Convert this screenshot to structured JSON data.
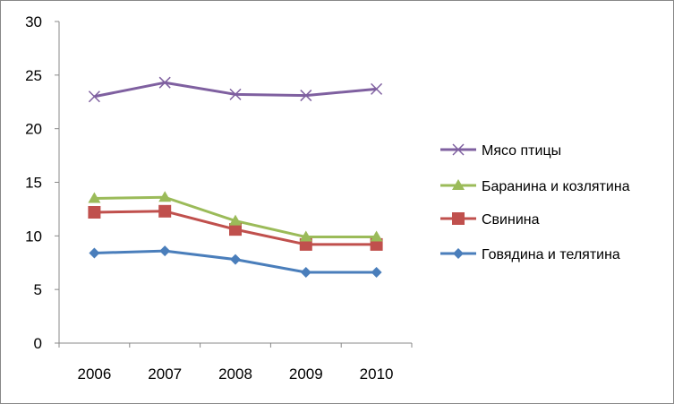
{
  "chart_data": {
    "type": "line",
    "title": "",
    "xlabel": "",
    "ylabel": "",
    "x": [
      "2006",
      "2007",
      "2008",
      "2009",
      "2010"
    ],
    "ylim": [
      0,
      30
    ],
    "yticks": [
      "0",
      "5",
      "10",
      "15",
      "20",
      "25",
      "30"
    ],
    "grid": false,
    "legend_position": "right",
    "series": [
      {
        "name": "Мясо птицы",
        "values": [
          23.0,
          24.3,
          23.2,
          23.1,
          23.7
        ],
        "color": "#7f60a0",
        "marker": "x"
      },
      {
        "name": "Баранина и козлятина",
        "values": [
          13.5,
          13.6,
          11.4,
          9.9,
          9.9
        ],
        "color": "#9bbb59",
        "marker": "triangle"
      },
      {
        "name": "Свинина",
        "values": [
          12.2,
          12.3,
          10.6,
          9.2,
          9.2
        ],
        "color": "#c0504d",
        "marker": "square"
      },
      {
        "name": "Говядина и телятина",
        "values": [
          8.4,
          8.6,
          7.8,
          6.6,
          6.6
        ],
        "color": "#4a7ebb",
        "marker": "diamond"
      }
    ]
  }
}
